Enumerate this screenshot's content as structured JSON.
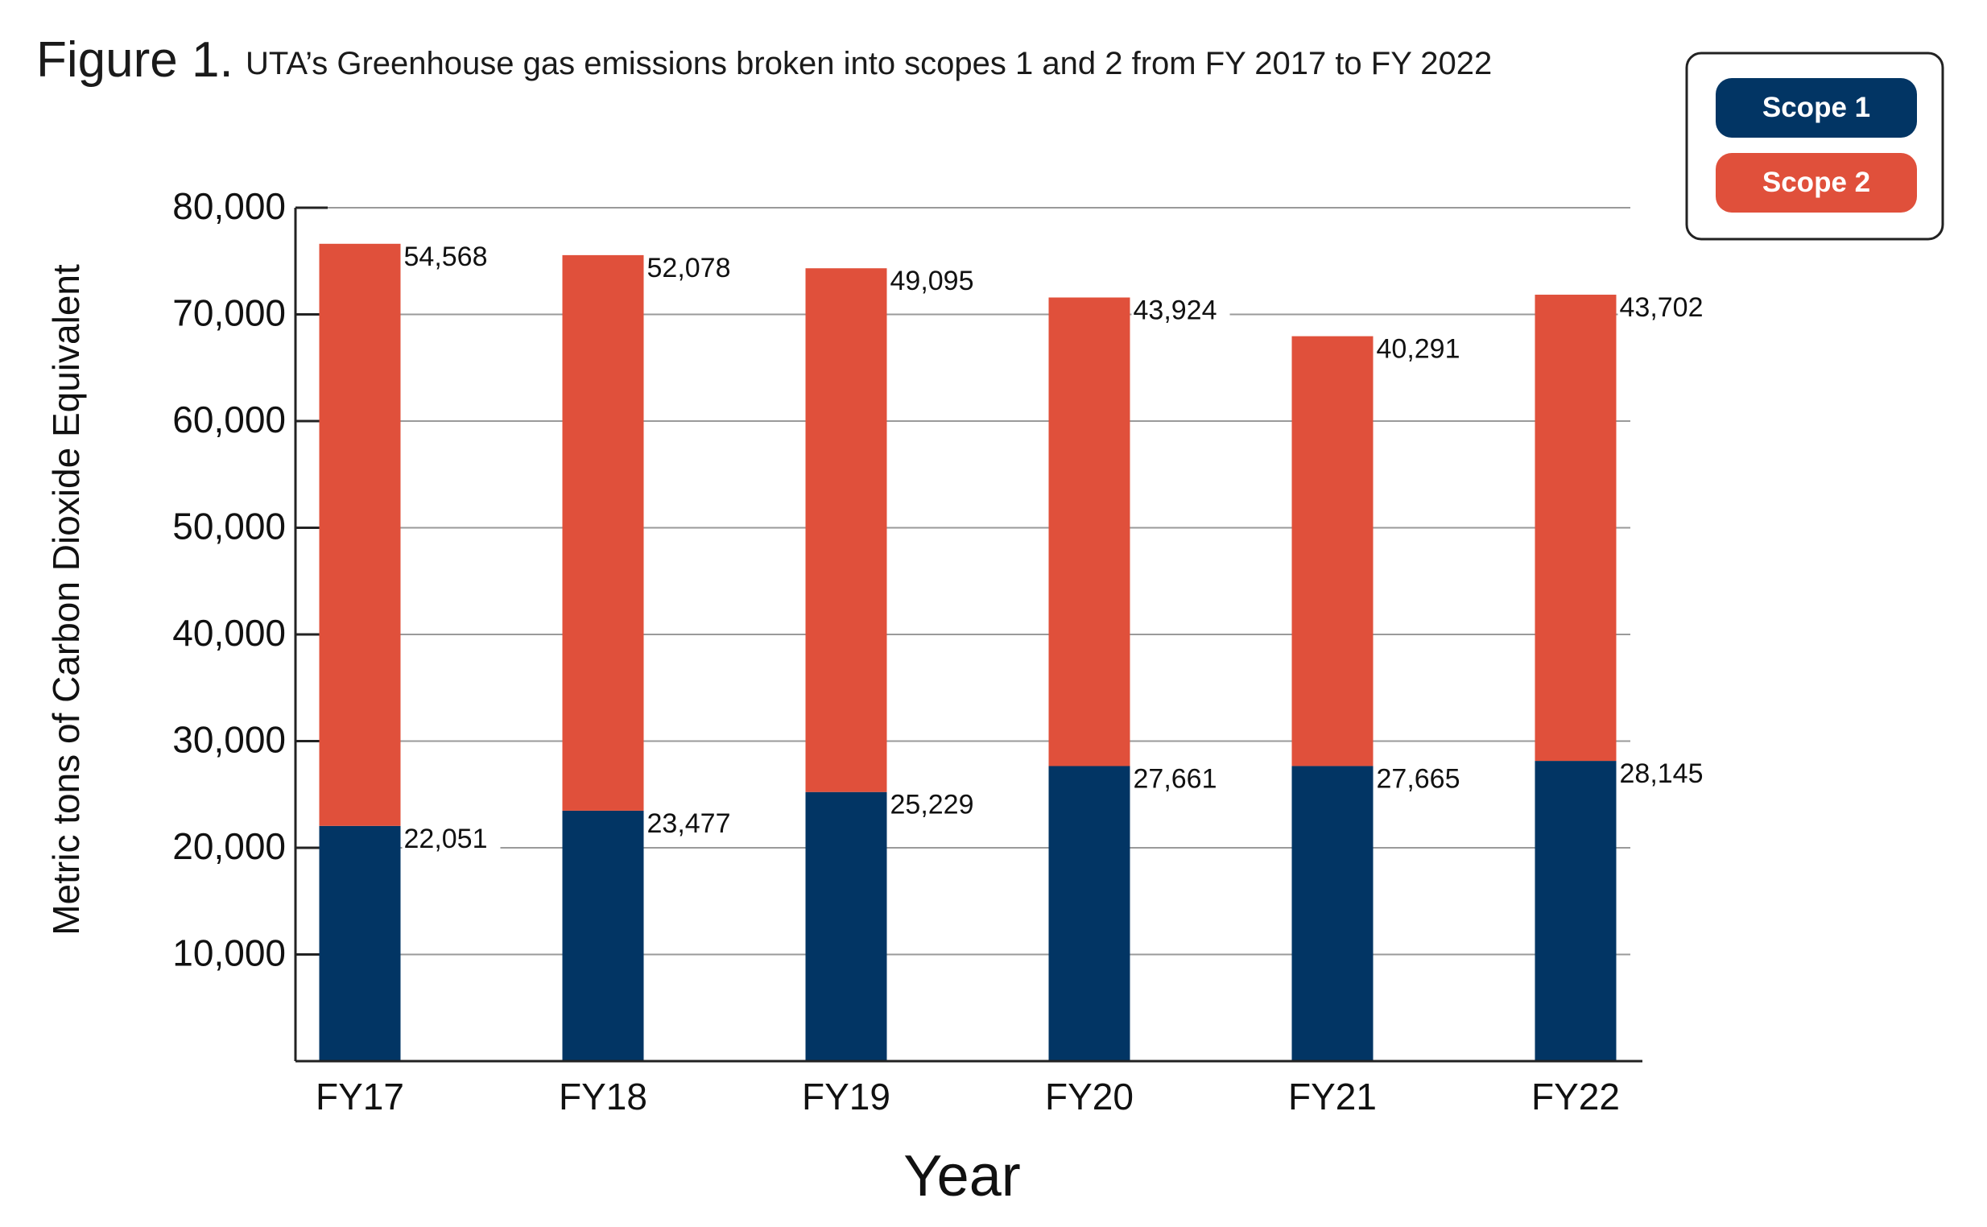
{
  "figure_label": "Figure 1.",
  "title": "UTA’s Greenhouse gas emissions broken into scopes 1 and 2 from FY 2017 to FY 2022",
  "chart_data": {
    "type": "bar",
    "stacked": true,
    "categories": [
      "FY17",
      "FY18",
      "FY19",
      "FY20",
      "FY21",
      "FY22"
    ],
    "series": [
      {
        "name": "Scope 1",
        "color": "#023564",
        "values": [
          22051,
          23477,
          25229,
          27661,
          27665,
          28145
        ],
        "labels": [
          "22,051",
          "23,477",
          "25,229",
          "27,661",
          "27,665",
          "28,145"
        ]
      },
      {
        "name": "Scope 2",
        "color": "#e0503b",
        "values": [
          54568,
          52078,
          49095,
          43924,
          40291,
          43702
        ],
        "labels": [
          "54,568",
          "52,078",
          "49,095",
          "43,924",
          "40,291",
          "43,702"
        ]
      }
    ],
    "xlabel": "Year",
    "ylabel": "Metric tons of Carbon Dioxide Equivalent",
    "ylim": [
      0,
      80000
    ],
    "yticks": [
      10000,
      20000,
      30000,
      40000,
      50000,
      60000,
      70000,
      80000
    ],
    "ytick_labels": [
      "10,000",
      "20,000",
      "30,000",
      "40,000",
      "50,000",
      "60,000",
      "70,000",
      "80,000"
    ],
    "grid": true,
    "legend_position": "top-right"
  }
}
